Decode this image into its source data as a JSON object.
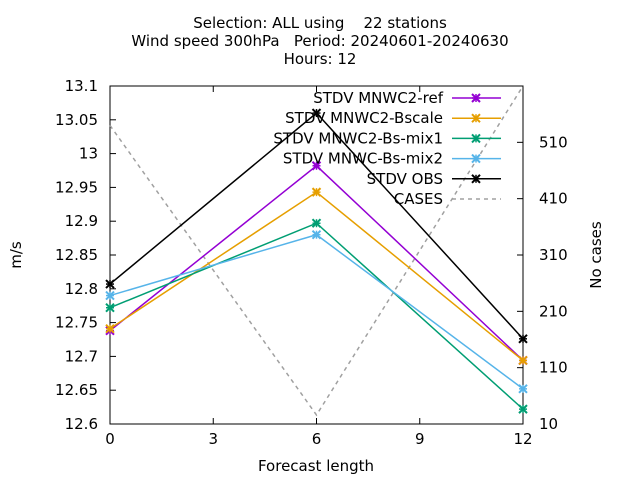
{
  "chart_data": {
    "type": "line",
    "title_lines": [
      "Selection: ALL using    22 stations",
      "Wind speed 300hPa   Period: 20240601-20240630",
      "Hours: 12"
    ],
    "xlabel": "Forecast length",
    "ylabel": "m/s",
    "y2label": "No cases",
    "x": [
      0,
      6,
      12
    ],
    "xlim": [
      0,
      12
    ],
    "xticks": [
      0,
      3,
      6,
      9,
      12
    ],
    "ylim": [
      12.6,
      13.1
    ],
    "yticks": [
      12.6,
      12.65,
      12.7,
      12.75,
      12.8,
      12.85,
      12.9,
      12.95,
      13,
      13.05,
      13.1
    ],
    "y2lim": [
      10,
      610
    ],
    "y2ticks": [
      10,
      110,
      210,
      310,
      410,
      510
    ],
    "grid": false,
    "legend_position": "top-right",
    "series": [
      {
        "name": "STDV MNWC2-ref",
        "color": "#9400d3",
        "marker": "x",
        "values": [
          12.738,
          12.982,
          12.694
        ]
      },
      {
        "name": "STDV MNWC2-Bscale",
        "color": "#e69f00",
        "marker": "x",
        "values": [
          12.741,
          12.943,
          12.694
        ]
      },
      {
        "name": "STDV MNWC2-Bs-mix1",
        "color": "#009e73",
        "marker": "x",
        "values": [
          12.772,
          12.897,
          12.622
        ]
      },
      {
        "name": "STDV MNWC-Bs-mix2",
        "color": "#56b4e9",
        "marker": "x",
        "values": [
          12.79,
          12.88,
          12.652
        ]
      },
      {
        "name": "STDV OBS",
        "color": "#000000",
        "marker": "x",
        "values": [
          12.807,
          13.06,
          12.726
        ]
      },
      {
        "name": "CASES",
        "color": "#a0a0a0",
        "marker": "none",
        "dashed": true,
        "axis": "y2",
        "values": [
          540,
          26,
          610
        ]
      }
    ]
  }
}
